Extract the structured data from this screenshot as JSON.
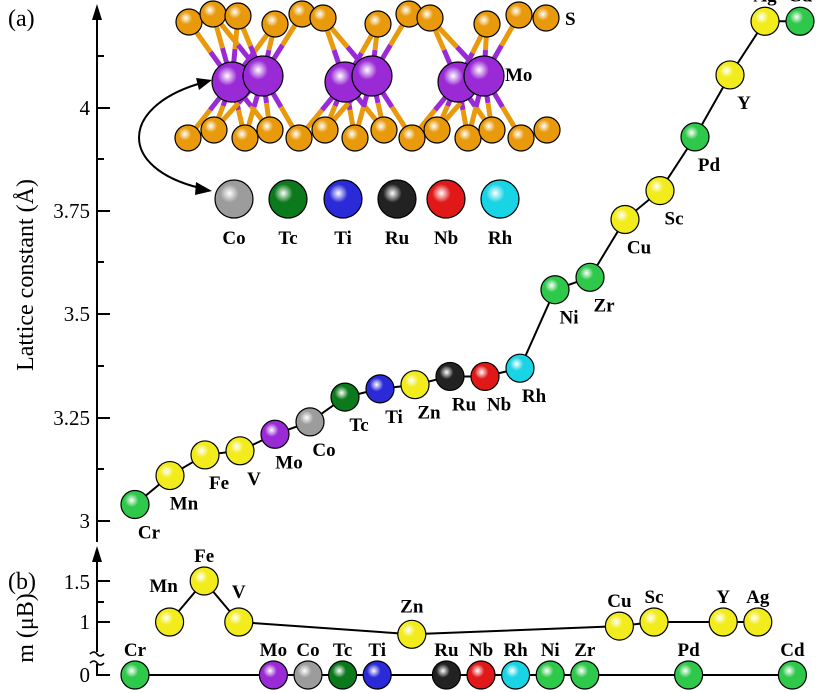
{
  "colors": {
    "Cr": "#2ec84a",
    "Mn": "#f2ec1c",
    "Fe": "#f2ec1c",
    "V": "#f2ec1c",
    "Mo": "#9a2ad6",
    "Co": "#9c9c9c",
    "Tc": "#0c7a1c",
    "Ti": "#2a2ad8",
    "Zn": "#f2ec1c",
    "Ru": "#222222",
    "Nb": "#e01818",
    "Rh": "#18d4e4",
    "Ni": "#2ec84a",
    "Zr": "#2ec84a",
    "Cu": "#f2ec1c",
    "Sc": "#f2ec1c",
    "Pd": "#2ec84a",
    "Y": "#f2ec1c",
    "Ag": "#f2ec1c",
    "Cd": "#2ec84a",
    "S": "#e89a0c"
  },
  "chart_data": [
    {
      "type": "line",
      "panel": "(a)",
      "ylabel": "Lattice constant (Å)",
      "yticks": [
        "3",
        "3.25",
        "3.5",
        "3.75",
        "4"
      ],
      "ylim": [
        2.95,
        4.25
      ],
      "marker": "sphere",
      "series": [
        {
          "points": [
            {
              "label": "Cr",
              "x": 1,
              "y": 3.04
            },
            {
              "label": "Mn",
              "x": 2,
              "y": 3.11
            },
            {
              "label": "Fe",
              "x": 3,
              "y": 3.16
            },
            {
              "label": "V",
              "x": 4,
              "y": 3.17
            },
            {
              "label": "Mo",
              "x": 5,
              "y": 3.21
            },
            {
              "label": "Co",
              "x": 6,
              "y": 3.24
            },
            {
              "label": "Tc",
              "x": 7,
              "y": 3.3
            },
            {
              "label": "Ti",
              "x": 8,
              "y": 3.32
            },
            {
              "label": "Zn",
              "x": 9,
              "y": 3.33
            },
            {
              "label": "Ru",
              "x": 10,
              "y": 3.35
            },
            {
              "label": "Nb",
              "x": 11,
              "y": 3.35
            },
            {
              "label": "Rh",
              "x": 12,
              "y": 3.37
            },
            {
              "label": "Ni",
              "x": 13,
              "y": 3.56
            },
            {
              "label": "Zr",
              "x": 14,
              "y": 3.59
            },
            {
              "label": "Cu",
              "x": 15,
              "y": 3.73
            },
            {
              "label": "Sc",
              "x": 16,
              "y": 3.8
            },
            {
              "label": "Pd",
              "x": 17,
              "y": 3.93
            },
            {
              "label": "Y",
              "x": 18,
              "y": 4.08
            },
            {
              "label": "Ag",
              "x": 19,
              "y": 4.21
            },
            {
              "label": "Cd",
              "x": 20,
              "y": 4.21
            }
          ]
        }
      ]
    },
    {
      "type": "line",
      "panel": "(b)",
      "ylabel": "m (μB)",
      "yticks": [
        "0",
        "1",
        "1.5"
      ],
      "marker": "sphere",
      "series": [
        {
          "points": [
            {
              "label": "Cr",
              "x": 1,
              "y": 0
            },
            {
              "label": "Mn",
              "x": 2,
              "y": 1
            },
            {
              "label": "Fe",
              "x": 3,
              "y": 1.5
            },
            {
              "label": "V",
              "x": 4,
              "y": 1
            },
            {
              "label": "Mo",
              "x": 5,
              "y": 0
            },
            {
              "label": "Co",
              "x": 6,
              "y": 0
            },
            {
              "label": "Tc",
              "x": 7,
              "y": 0
            },
            {
              "label": "Ti",
              "x": 8,
              "y": 0
            },
            {
              "label": "Zn",
              "x": 9,
              "y": 0.85
            },
            {
              "label": "Ru",
              "x": 10,
              "y": 0
            },
            {
              "label": "Nb",
              "x": 11,
              "y": 0
            },
            {
              "label": "Rh",
              "x": 12,
              "y": 0
            },
            {
              "label": "Ni",
              "x": 13,
              "y": 0
            },
            {
              "label": "Zr",
              "x": 14,
              "y": 0
            },
            {
              "label": "Cu",
              "x": 15,
              "y": 0.95
            },
            {
              "label": "Sc",
              "x": 16,
              "y": 1
            },
            {
              "label": "Pd",
              "x": 17,
              "y": 0
            },
            {
              "label": "Y",
              "x": 18,
              "y": 1
            },
            {
              "label": "Ag",
              "x": 19,
              "y": 1
            },
            {
              "label": "Cd",
              "x": 20,
              "y": 0
            }
          ]
        }
      ]
    }
  ],
  "inset": {
    "structure_labels": [
      "S",
      "Mo"
    ],
    "dopants": [
      "Co",
      "Tc",
      "Ti",
      "Ru",
      "Nb",
      "Rh"
    ]
  }
}
